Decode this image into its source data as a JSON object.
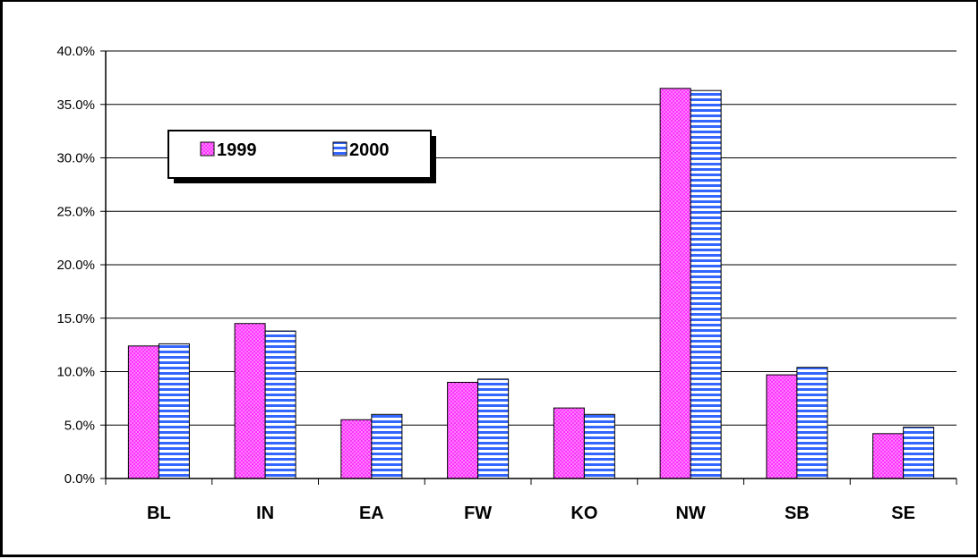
{
  "chart_data": {
    "type": "bar",
    "title": "",
    "xlabel": "",
    "ylabel": "",
    "categories": [
      "BL",
      "IN",
      "EA",
      "FW",
      "KO",
      "NW",
      "SB",
      "SE"
    ],
    "series": [
      {
        "name": "1999",
        "color": "#ff33ff",
        "pattern": "dots",
        "values": [
          12.4,
          14.5,
          5.5,
          9.0,
          6.6,
          36.5,
          9.7,
          4.2
        ]
      },
      {
        "name": "2000",
        "color": "#3366ff",
        "pattern": "horizontal-stripes",
        "values": [
          12.6,
          13.8,
          6.0,
          9.3,
          6.0,
          36.3,
          10.4,
          4.8
        ]
      }
    ],
    "ylim": [
      0,
      40
    ],
    "yticks": [
      "0.0%",
      "5.0%",
      "10.0%",
      "15.0%",
      "20.0%",
      "25.0%",
      "30.0%",
      "35.0%",
      "40.0%"
    ],
    "grid": true,
    "legend_position": "upper-left"
  }
}
